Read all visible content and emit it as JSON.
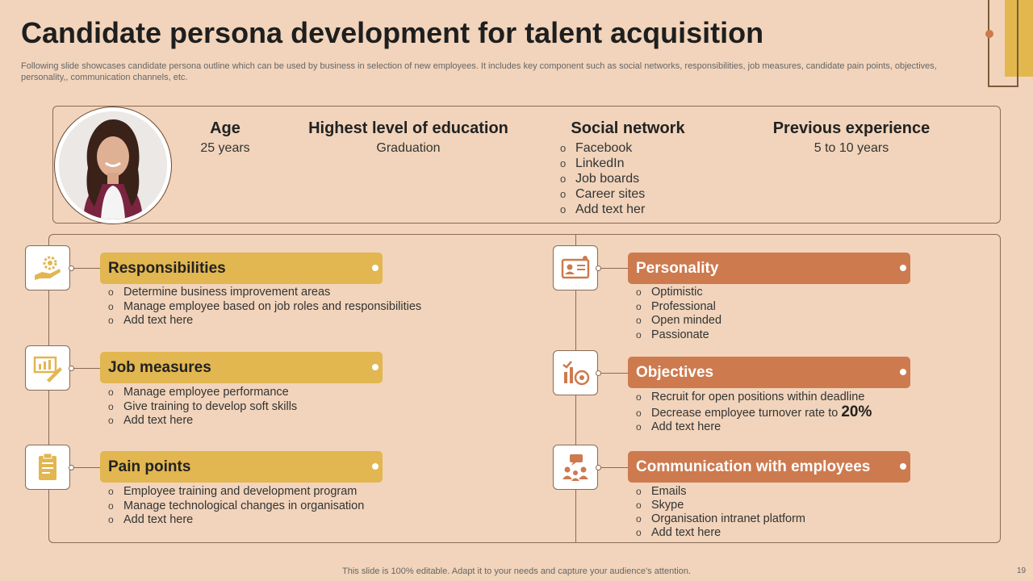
{
  "header": {
    "title": "Candidate persona development for talent acquisition",
    "subtitle": "Following slide showcases candidate persona outline which can be used by business in selection of new employees. It includes key component such as social networks, responsibilities, job measures, candidate pain points, objectives, personality,, communication channels, etc."
  },
  "profile": {
    "age_label": "Age",
    "age_value": "25 years",
    "education_label": "Highest level of education",
    "education_value": "Graduation",
    "social_label": "Social network",
    "social_items": [
      "Facebook",
      "LinkedIn",
      "Job boards",
      "Career sites",
      "Add text her"
    ],
    "experience_label": "Previous experience",
    "experience_value": "5 to 10 years"
  },
  "sections": {
    "responsibilities": {
      "title": "Responsibilities",
      "icon": "gear-hand-icon",
      "items": [
        "Determine business improvement areas",
        "Manage employee based on job roles and responsibilities",
        "Add text here"
      ]
    },
    "job_measures": {
      "title": "Job measures",
      "icon": "chart-ruler-icon",
      "items": [
        "Manage employee performance",
        "Give training to develop soft skills",
        "Add text here"
      ]
    },
    "pain_points": {
      "title": "Pain points",
      "icon": "clipboard-icon",
      "items": [
        "Employee training and development program",
        "Manage technological changes in organisation",
        "Add text here"
      ]
    },
    "personality": {
      "title": "Personality",
      "icon": "id-card-icon",
      "items": [
        "Optimistic",
        "Professional",
        "Open minded",
        "Passionate"
      ]
    },
    "objectives": {
      "title": "Objectives",
      "icon": "target-chart-icon",
      "items": [
        "Recruit for open positions within deadline",
        "Decrease employee turnover rate to",
        "Add text here"
      ],
      "highlight": "20%"
    },
    "communication": {
      "title": "Communication with employees",
      "icon": "people-chat-icon",
      "items": [
        "Emails",
        "Skype",
        "Organisation intranet platform",
        "Add text here"
      ]
    }
  },
  "colors": {
    "background": "#f1d4bb",
    "gold": "#e2b650",
    "orange": "#cd7a4f",
    "border": "#8a6a55"
  },
  "footer": {
    "note": "This slide is 100% editable. Adapt it to your needs and capture your audience's attention.",
    "page": "19"
  }
}
